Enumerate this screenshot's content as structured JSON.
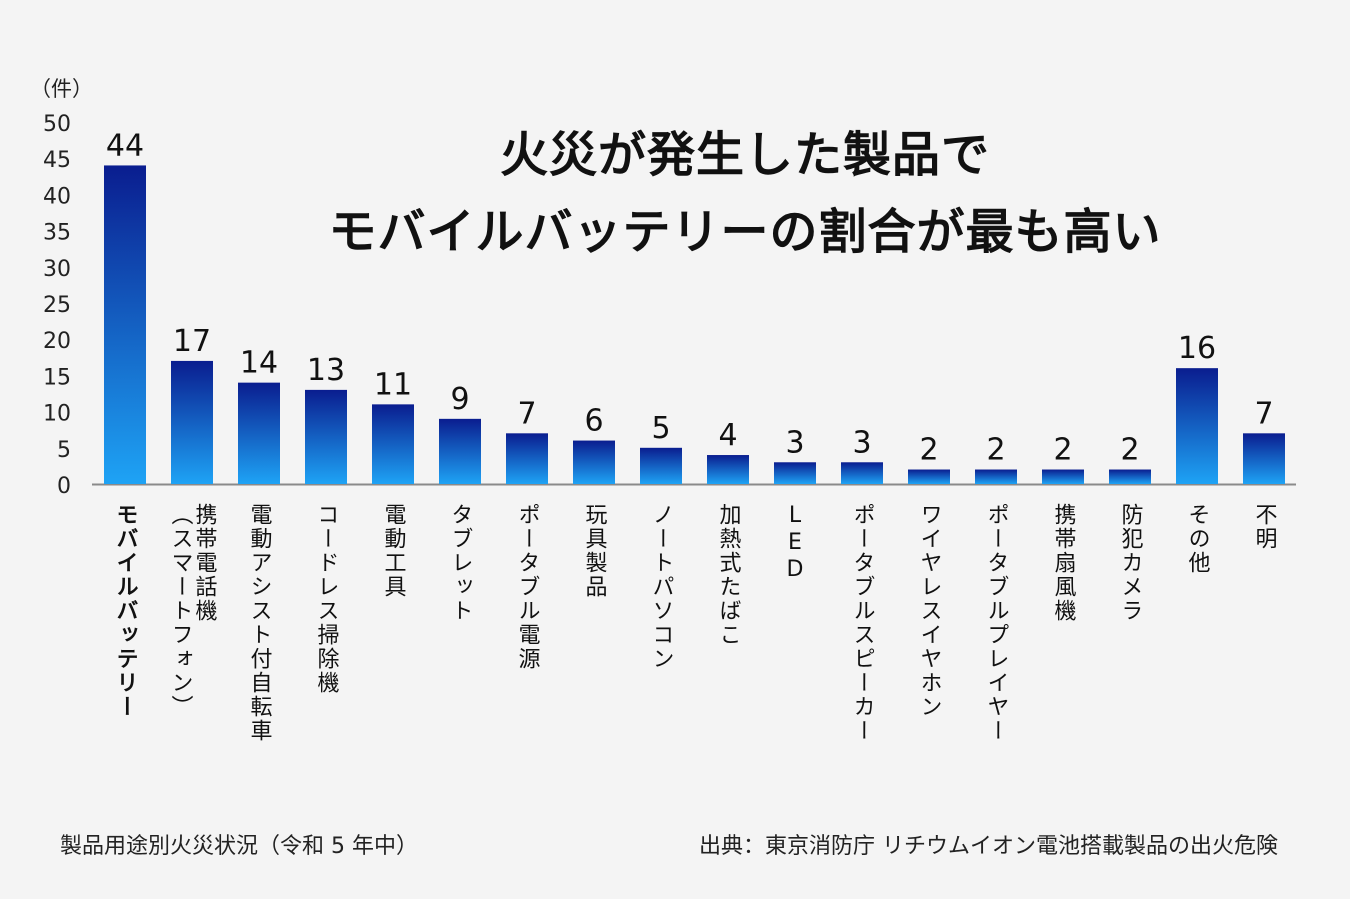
{
  "chart_data": {
    "type": "bar",
    "title": [
      "火災が発生した製品で",
      "モバイルバッテリーの割合が最も高い"
    ],
    "ylabel": "（件）",
    "xlabel": "",
    "ylim": [
      0,
      50
    ],
    "yticks": [
      0,
      5,
      10,
      15,
      20,
      25,
      30,
      35,
      40,
      45,
      50
    ],
    "grid": false,
    "categories": [
      [
        "モバイルバッテリー"
      ],
      [
        "携帯電話機",
        "（スマートフォン）"
      ],
      [
        "電動アシスト付自転車"
      ],
      [
        "コードレス掃除機"
      ],
      [
        "電動工具"
      ],
      [
        "タブレット"
      ],
      [
        "ポータブル電源"
      ],
      [
        "玩具製品"
      ],
      [
        "ノートパソコン"
      ],
      [
        "加熱式たばこ"
      ],
      [
        "LED"
      ],
      [
        "ポータブルスピーカー"
      ],
      [
        "ワイヤレスイヤホン"
      ],
      [
        "ポータブルプレイヤー"
      ],
      [
        "携帯扇風機"
      ],
      [
        "防犯カメラ"
      ],
      [
        "その他"
      ],
      [
        "不明"
      ]
    ],
    "values": [
      44,
      17,
      14,
      13,
      11,
      9,
      7,
      6,
      5,
      4,
      3,
      3,
      2,
      2,
      2,
      2,
      16,
      7
    ],
    "highlight_index": 0
  },
  "footer": {
    "left": "製品用途別火災状況（令和 5 年中）",
    "right": "出典：東京消防庁 リチウムイオン電池搭載製品の出火危険"
  },
  "colors": {
    "bar_top": "#0a1d8f",
    "bar_bottom": "#1ea3f5",
    "axis": "#8a8a8a",
    "background": "#f4f4f4"
  }
}
